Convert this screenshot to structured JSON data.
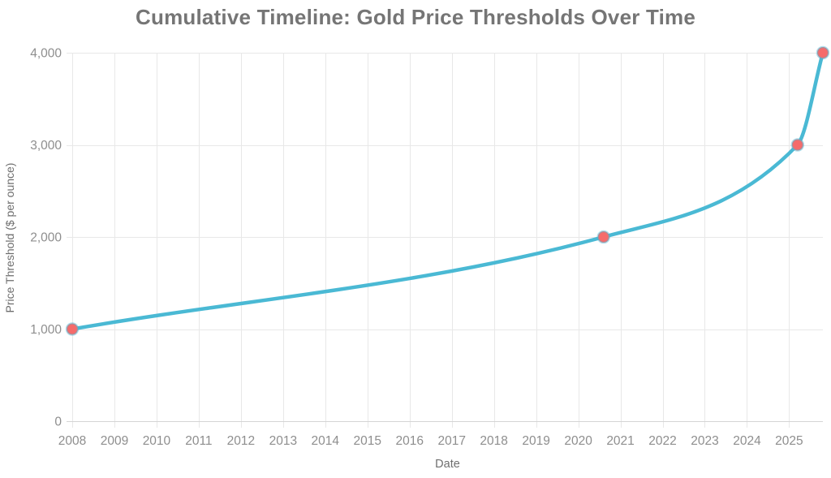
{
  "chart_data": {
    "type": "line",
    "title": "Cumulative Timeline: Gold Price Thresholds Over Time",
    "xlabel": "Date",
    "ylabel": "Price Threshold ($ per ounce)",
    "xlim": [
      2008,
      2025.8
    ],
    "ylim": [
      0,
      4000
    ],
    "grid": true,
    "legend": false,
    "x_ticks": [
      2008,
      2009,
      2010,
      2011,
      2012,
      2013,
      2014,
      2015,
      2016,
      2017,
      2018,
      2019,
      2020,
      2021,
      2022,
      2023,
      2024,
      2025
    ],
    "y_ticks": [
      0,
      1000,
      2000,
      3000,
      4000
    ],
    "y_tick_labels": [
      "0",
      "1,000",
      "2,000",
      "3,000",
      "4,000"
    ],
    "series": [
      {
        "x": [
          2008.0,
          2020.6,
          2025.2,
          2025.8
        ],
        "y": [
          1000,
          2000,
          3000,
          4000
        ],
        "smooth": true
      }
    ],
    "colors": {
      "line": "#4ab9d4",
      "marker_fill": "#f56b6b",
      "marker_ring": "rgba(77,185,212,0.45)",
      "grid_line": "#e8e8e8",
      "axis_line": "#d4d4d4",
      "tick_label": "#8e8e8e",
      "title": "#757575",
      "axis_title": "#6e6e6e"
    }
  }
}
